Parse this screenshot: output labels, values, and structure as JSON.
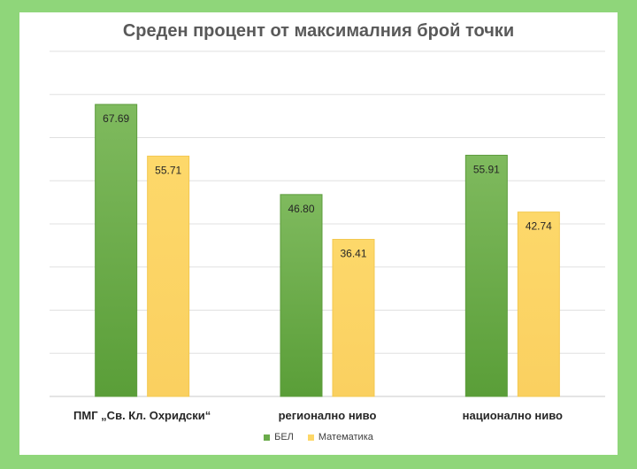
{
  "chart_data": {
    "type": "bar",
    "title": "Среден процент от максималния брой точки",
    "categories": [
      "ПМГ „Св. Кл. Охридски“",
      "регионално ниво",
      "национално ниво"
    ],
    "series": [
      {
        "name": "БЕЛ",
        "values": [
          67.69,
          46.8,
          55.91
        ],
        "value_labels": [
          "67.69",
          "46.80",
          "55.91"
        ],
        "color": "#6aab4a"
      },
      {
        "name": "Математика",
        "values": [
          55.71,
          36.41,
          42.74
        ],
        "value_labels": [
          "55.71",
          "36.41",
          "42.74"
        ],
        "color": "#fdd767"
      }
    ],
    "ylim": [
      0,
      80
    ],
    "grid": true,
    "legend_position": "bottom",
    "background_color": "#8fd67a"
  }
}
